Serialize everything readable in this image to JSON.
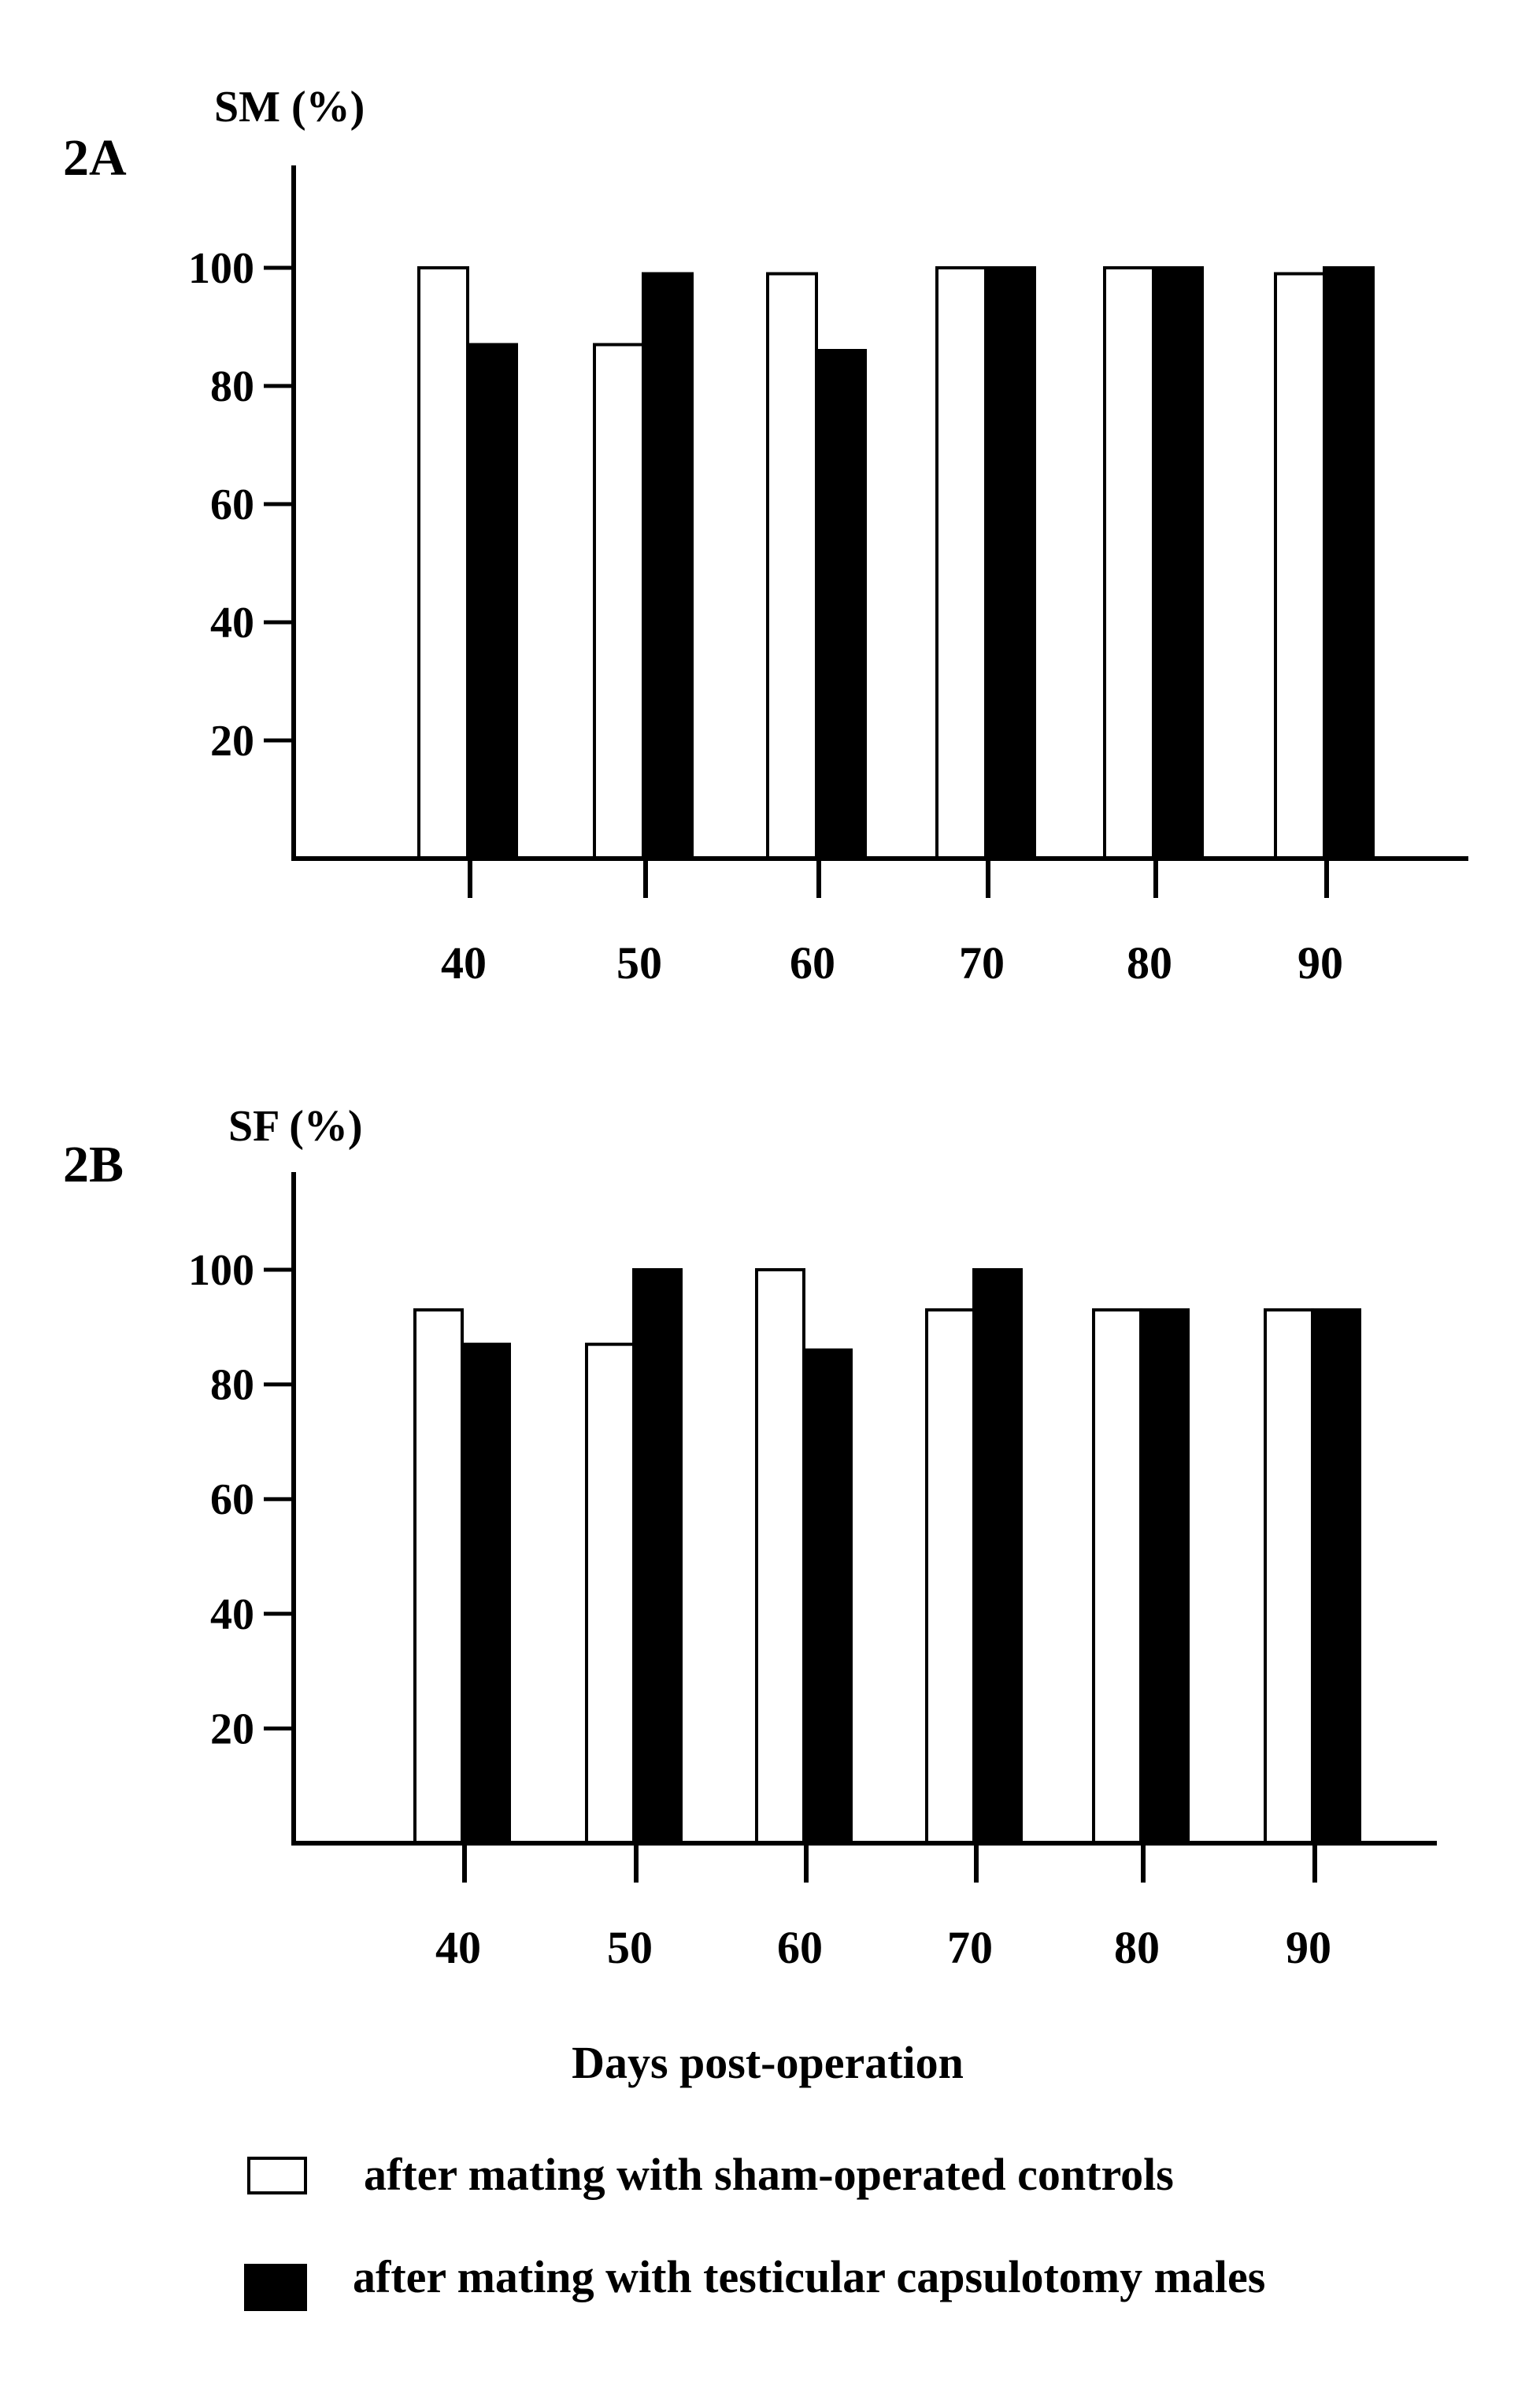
{
  "chart_data": [
    {
      "type": "bar",
      "panel_label": "2A",
      "ylabel": "SM (%)",
      "xlabel": "",
      "categories": [
        "40",
        "50",
        "60",
        "70",
        "80",
        "90"
      ],
      "yticks": [
        "20",
        "40",
        "60",
        "80",
        "100"
      ],
      "ylim": [
        0,
        100
      ],
      "series": [
        {
          "values": [
            100,
            87,
            99,
            100,
            100,
            99
          ],
          "fill": "#ffffff"
        },
        {
          "values": [
            87,
            99,
            86,
            100,
            100,
            100
          ],
          "fill": "#000000"
        }
      ]
    },
    {
      "type": "bar",
      "panel_label": "2B",
      "ylabel": "SF (%)",
      "xlabel": "Days post-operation",
      "categories": [
        "40",
        "50",
        "60",
        "70",
        "80",
        "90"
      ],
      "yticks": [
        "20",
        "40",
        "60",
        "80",
        "100"
      ],
      "ylim": [
        0,
        100
      ],
      "series": [
        {
          "values": [
            93,
            87,
            100,
            93,
            93,
            93
          ],
          "fill": "#ffffff"
        },
        {
          "values": [
            87,
            100,
            86,
            100,
            93,
            93
          ],
          "fill": "#000000"
        }
      ]
    }
  ],
  "legend": [
    {
      "label": "after mating with sham-operated controls",
      "fill": "#ffffff"
    },
    {
      "label": "after mating with testicular capsulotomy males",
      "fill": "#000000"
    }
  ]
}
